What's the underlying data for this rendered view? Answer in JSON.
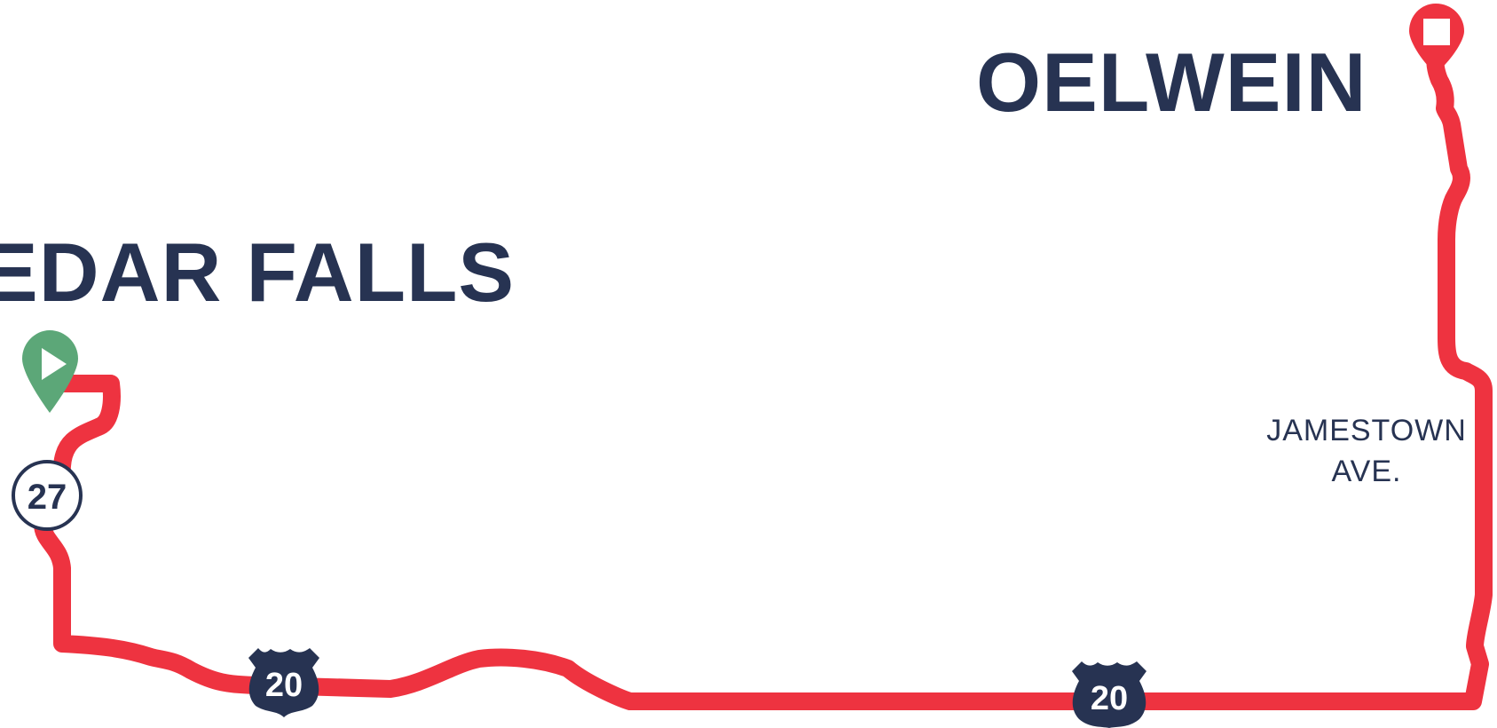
{
  "cities": {
    "oelwein": "OELWEIN",
    "cedar_falls": "EDAR FALLS"
  },
  "street": {
    "line1": "JAMESTOWN",
    "line2": "AVE."
  },
  "highways": {
    "route_27": "27",
    "us20_west": "20",
    "us20_east": "20"
  },
  "markers": {
    "start": "start-marker-icon",
    "end": "end-marker-icon"
  },
  "colors": {
    "route": "#ee3340",
    "text": "#273352",
    "start_marker": "#5ca778",
    "end_marker": "#ee3340",
    "shield": "#273352"
  }
}
